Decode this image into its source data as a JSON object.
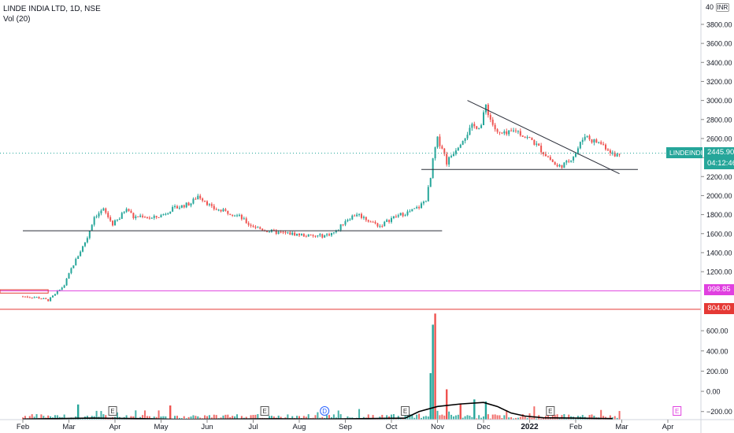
{
  "header": {
    "title": "LINDE INDIA LTD, 1D, NSE",
    "indicator": "Vol (20)",
    "currency": "INR",
    "scale_top_label": "40"
  },
  "price_tag": {
    "symbol": "LINDEINDIA",
    "price": "2445.90",
    "countdown": "04:12:46"
  },
  "level_tags": [
    {
      "label": "998.85",
      "value": 998.85,
      "color": "#e040e0"
    },
    {
      "label": "804.00",
      "value": 804.0,
      "color": "#e53935"
    }
  ],
  "event_markers": [
    {
      "label": "E",
      "month_pos": 1.95
    },
    {
      "label": "E",
      "month_pos": 5.25
    },
    {
      "label": "D",
      "month_pos": 6.55
    },
    {
      "label": "E",
      "month_pos": 8.3
    },
    {
      "label": "E",
      "month_pos": 11.45
    },
    {
      "label": "E",
      "month_pos": 14.2
    }
  ],
  "chart_data": {
    "type": "candlestick",
    "symbol": "LINDE INDIA LTD",
    "timeframe": "1D",
    "exchange": "NSE",
    "x_tick_labels": [
      "Feb",
      "Mar",
      "Apr",
      "May",
      "Jun",
      "Jul",
      "Aug",
      "Sep",
      "Oct",
      "Nov",
      "Dec",
      "2022",
      "Feb",
      "Mar",
      "Apr"
    ],
    "price_axis": {
      "ticks": [
        1200,
        1400,
        1600,
        1800,
        2000,
        2200,
        2400,
        2600,
        2800,
        3000,
        3200,
        3400,
        3600,
        3800
      ],
      "ylim": [
        820,
        3990
      ]
    },
    "volume_axis": {
      "ticks": [
        -200,
        0,
        200,
        400,
        600
      ],
      "ylim": [
        -280,
        780
      ]
    },
    "last_price": 2445.9,
    "colors": {
      "up": "#26a69a",
      "down": "#ef5350",
      "volume_ma": "#000000"
    },
    "price_path": [
      [
        0.0,
        940
      ],
      [
        0.3,
        930
      ],
      [
        0.55,
        900
      ],
      [
        0.7,
        960
      ],
      [
        0.9,
        1060
      ],
      [
        1.05,
        1230
      ],
      [
        1.2,
        1370
      ],
      [
        1.4,
        1560
      ],
      [
        1.55,
        1780
      ],
      [
        1.75,
        1850
      ],
      [
        1.95,
        1700
      ],
      [
        2.1,
        1760
      ],
      [
        2.25,
        1880
      ],
      [
        2.4,
        1770
      ],
      [
        2.6,
        1790
      ],
      [
        2.8,
        1760
      ],
      [
        3.0,
        1790
      ],
      [
        3.2,
        1850
      ],
      [
        3.45,
        1890
      ],
      [
        3.65,
        1920
      ],
      [
        3.8,
        2000
      ],
      [
        3.95,
        1950
      ],
      [
        4.1,
        1870
      ],
      [
        4.3,
        1840
      ],
      [
        4.5,
        1820
      ],
      [
        4.7,
        1780
      ],
      [
        4.9,
        1700
      ],
      [
        5.1,
        1660
      ],
      [
        5.3,
        1630
      ],
      [
        5.55,
        1610
      ],
      [
        5.8,
        1600
      ],
      [
        6.0,
        1590
      ],
      [
        6.3,
        1570
      ],
      [
        6.55,
        1580
      ],
      [
        6.8,
        1620
      ],
      [
        7.0,
        1740
      ],
      [
        7.25,
        1810
      ],
      [
        7.5,
        1740
      ],
      [
        7.75,
        1680
      ],
      [
        8.0,
        1760
      ],
      [
        8.2,
        1800
      ],
      [
        8.4,
        1830
      ],
      [
        8.6,
        1880
      ],
      [
        8.75,
        1960
      ],
      [
        8.85,
        2180
      ],
      [
        8.92,
        2440
      ],
      [
        9.0,
        2590
      ],
      [
        9.1,
        2510
      ],
      [
        9.2,
        2350
      ],
      [
        9.35,
        2460
      ],
      [
        9.55,
        2600
      ],
      [
        9.75,
        2720
      ],
      [
        9.95,
        2740
      ],
      [
        10.05,
        2950
      ],
      [
        10.15,
        2800
      ],
      [
        10.3,
        2650
      ],
      [
        10.5,
        2640
      ],
      [
        10.7,
        2690
      ],
      [
        10.9,
        2620
      ],
      [
        11.05,
        2580
      ],
      [
        11.25,
        2480
      ],
      [
        11.45,
        2380
      ],
      [
        11.6,
        2300
      ],
      [
        11.8,
        2340
      ],
      [
        12.0,
        2450
      ],
      [
        12.2,
        2640
      ],
      [
        12.35,
        2580
      ],
      [
        12.55,
        2550
      ],
      [
        12.75,
        2470
      ],
      [
        12.85,
        2410
      ],
      [
        12.95,
        2450
      ]
    ],
    "volume_ma_path": [
      [
        0.0,
        -275
      ],
      [
        1.5,
        -265
      ],
      [
        2.5,
        -270
      ],
      [
        3.5,
        -278
      ],
      [
        4.5,
        -275
      ],
      [
        5.5,
        -272
      ],
      [
        6.5,
        -275
      ],
      [
        7.5,
        -270
      ],
      [
        8.3,
        -265
      ],
      [
        8.6,
        -200
      ],
      [
        9.0,
        -150
      ],
      [
        9.5,
        -125
      ],
      [
        10.0,
        -110
      ],
      [
        10.3,
        -150
      ],
      [
        10.6,
        -215
      ],
      [
        10.9,
        -245
      ],
      [
        11.3,
        -262
      ],
      [
        12.0,
        -265
      ],
      [
        12.8,
        -270
      ]
    ],
    "volume_spikes": [
      {
        "month_pos": 8.95,
        "value": 770,
        "dir": "down"
      },
      {
        "month_pos": 8.9,
        "value": 660,
        "dir": "up"
      },
      {
        "month_pos": 8.85,
        "value": 180,
        "dir": "up"
      },
      {
        "month_pos": 9.2,
        "value": 20,
        "dir": "down"
      },
      {
        "month_pos": 9.8,
        "value": -80,
        "dir": "up"
      },
      {
        "month_pos": 9.5,
        "value": -120,
        "dir": "down"
      },
      {
        "month_pos": 10.05,
        "value": -100,
        "dir": "up"
      },
      {
        "month_pos": 3.2,
        "value": -140,
        "dir": "down"
      },
      {
        "month_pos": 1.2,
        "value": -130,
        "dir": "up"
      }
    ],
    "trend_lines": [
      {
        "from": [
          8.65,
          2275
        ],
        "to": [
          13.35,
          2275
        ]
      },
      {
        "from": [
          9.65,
          3000
        ],
        "to": [
          12.95,
          2230
        ]
      },
      {
        "from": [
          0.0,
          1630
        ],
        "to": [
          9.1,
          1630
        ]
      }
    ],
    "horizontal_levels": [
      {
        "value": 998.85,
        "color": "#e040e0"
      },
      {
        "value": 804.0,
        "color": "#e53935"
      }
    ]
  }
}
